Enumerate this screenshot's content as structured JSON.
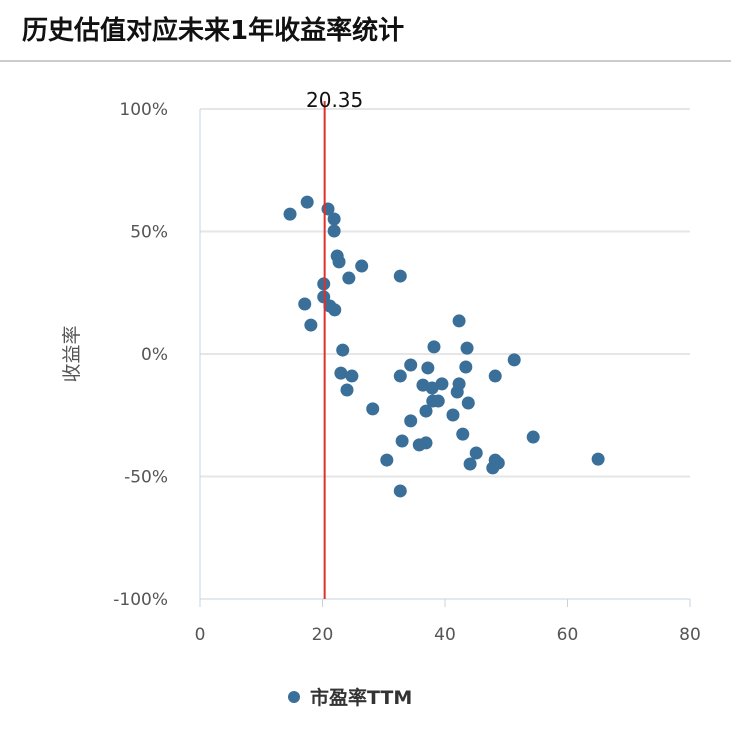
{
  "title": "历史估值对应未来1年收益率统计",
  "chart_data": {
    "type": "scatter",
    "title": "",
    "xlabel": "",
    "ylabel": "收益率",
    "xlim": [
      0,
      80
    ],
    "ylim": [
      -100,
      100
    ],
    "x_ticks": [
      "0",
      "20",
      "40",
      "60",
      "80"
    ],
    "y_ticks": [
      "100%",
      "50%",
      "0%",
      "-50%",
      "-100%"
    ],
    "grid": "horizontal",
    "legend_position": "bottom",
    "series": [
      {
        "name": "市盈率TTM",
        "color": "#3a6f99",
        "points": [
          [
            14.7,
            57.1
          ],
          [
            17.5,
            62.0
          ],
          [
            20.9,
            59.2
          ],
          [
            21.9,
            55.1
          ],
          [
            21.9,
            50.2
          ],
          [
            22.4,
            40.0
          ],
          [
            22.7,
            37.6
          ],
          [
            26.4,
            35.9
          ],
          [
            24.3,
            31.0
          ],
          [
            32.7,
            31.8
          ],
          [
            20.2,
            28.6
          ],
          [
            20.2,
            23.3
          ],
          [
            21.2,
            19.6
          ],
          [
            22.0,
            18.0
          ],
          [
            17.1,
            20.4
          ],
          [
            18.1,
            11.8
          ],
          [
            23.3,
            1.6
          ],
          [
            23.0,
            -7.8
          ],
          [
            24.8,
            -9.0
          ],
          [
            24.0,
            -14.7
          ],
          [
            32.7,
            -9.0
          ],
          [
            34.4,
            -4.5
          ],
          [
            28.2,
            -22.4
          ],
          [
            42.3,
            13.5
          ],
          [
            38.2,
            2.9
          ],
          [
            43.6,
            2.4
          ],
          [
            51.3,
            -2.4
          ],
          [
            37.2,
            -5.7
          ],
          [
            43.4,
            -5.3
          ],
          [
            48.2,
            -9.0
          ],
          [
            36.4,
            -12.7
          ],
          [
            37.9,
            -13.9
          ],
          [
            39.5,
            -12.2
          ],
          [
            42.3,
            -12.2
          ],
          [
            42.0,
            -15.5
          ],
          [
            38.0,
            -19.2
          ],
          [
            38.9,
            -19.2
          ],
          [
            43.8,
            -20.0
          ],
          [
            36.9,
            -23.3
          ],
          [
            41.3,
            -24.9
          ],
          [
            34.4,
            -27.3
          ],
          [
            42.9,
            -32.7
          ],
          [
            54.4,
            -33.9
          ],
          [
            33.0,
            -35.5
          ],
          [
            35.8,
            -37.1
          ],
          [
            36.9,
            -36.3
          ],
          [
            45.1,
            -40.4
          ],
          [
            30.5,
            -43.3
          ],
          [
            44.1,
            -44.9
          ],
          [
            48.2,
            -43.3
          ],
          [
            48.7,
            -44.5
          ],
          [
            47.8,
            -46.5
          ],
          [
            65.0,
            -42.9
          ],
          [
            32.7,
            -55.9
          ]
        ]
      }
    ],
    "reference_line": {
      "x": 20.35,
      "label": "20.35",
      "color": "#e0302a"
    }
  }
}
